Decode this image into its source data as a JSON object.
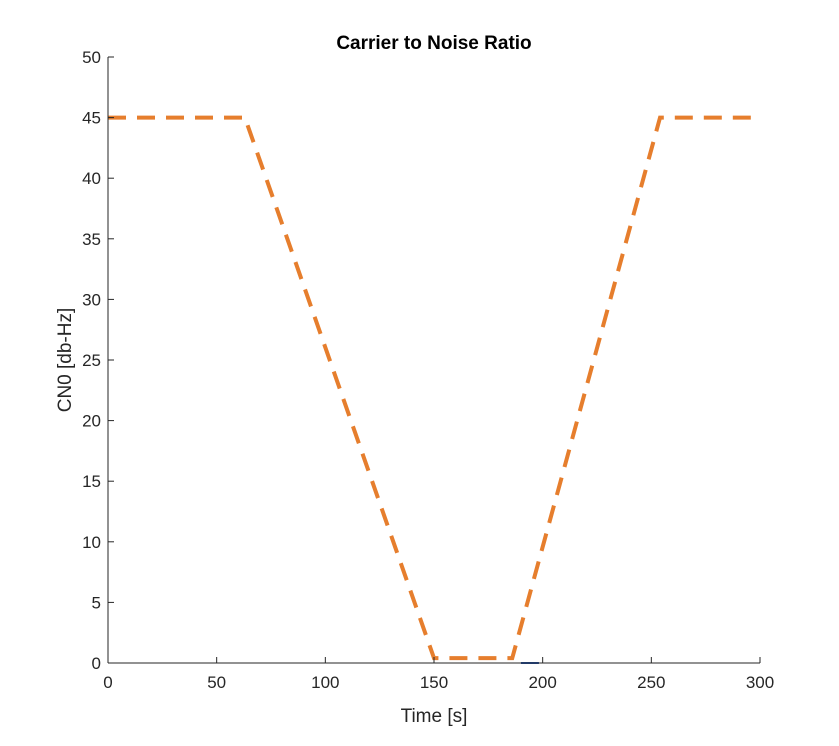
{
  "chart_data": {
    "type": "line",
    "title": "Carrier to Noise Ratio",
    "xlabel": "Time [s]",
    "ylabel": "CN0 [db-Hz]",
    "xlim": [
      0,
      300
    ],
    "ylim": [
      0,
      50
    ],
    "xticks": [
      0,
      50,
      100,
      150,
      200,
      250,
      300
    ],
    "yticks": [
      0,
      5,
      10,
      15,
      20,
      25,
      30,
      35,
      40,
      45,
      50
    ],
    "grid": false,
    "series": [
      {
        "color": "#E67E2D",
        "style": "dashed",
        "x": [
          0,
          63,
          150,
          186,
          254,
          300
        ],
        "y": [
          45,
          45,
          0.4,
          0.4,
          45,
          45
        ]
      },
      {
        "color": "#1F4FA8",
        "style": "dashed",
        "x": [
          190,
          199
        ],
        "y": [
          0,
          0
        ]
      }
    ]
  }
}
